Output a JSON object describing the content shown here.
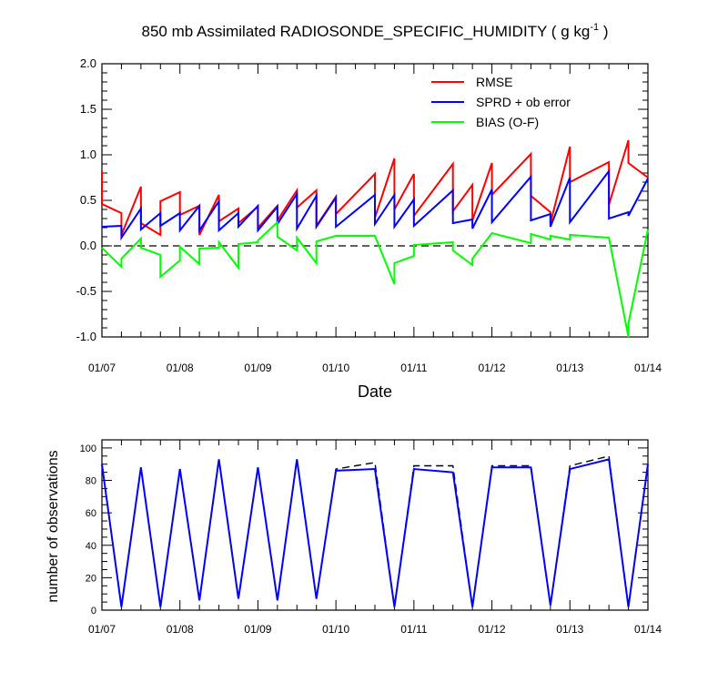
{
  "chart_data": [
    {
      "type": "line",
      "title_parts": [
        "850 mb Assimilated RADIOSONDE_SPECIFIC_HUMIDITY ( g kg",
        "-1",
        " )"
      ],
      "xlabel": "Date",
      "ylabel": "",
      "xlim": [
        0,
        7
      ],
      "ylim": [
        -1.0,
        2.0
      ],
      "yticks": [
        "2.0",
        "1.5",
        "1.0",
        "0.5",
        "0.0",
        "-0.5",
        "-1.0"
      ],
      "ytick_values": [
        2.0,
        1.5,
        1.0,
        0.5,
        0.0,
        -0.5,
        -1.0
      ],
      "xticks": [
        "01/07",
        "01/08",
        "01/09",
        "01/10",
        "01/11",
        "01/12",
        "01/13",
        "01/14"
      ],
      "x_unit": "days since 01/07",
      "zero_line": "dashed",
      "legend_position": "top-right",
      "series": [
        {
          "name": "RMSE",
          "color": "#ff0000",
          "points": [
            [
              0,
              0.82
            ],
            [
              0,
              0.46
            ],
            [
              0.25,
              0.36
            ],
            [
              0.25,
              0.12
            ],
            [
              0.5,
              0.65
            ],
            [
              0.5,
              0.25
            ],
            [
              0.75,
              0.12
            ],
            [
              0.75,
              0.49
            ],
            [
              1.0,
              0.59
            ],
            [
              1.0,
              0.34
            ],
            [
              1.25,
              0.44
            ],
            [
              1.25,
              0.12
            ],
            [
              1.5,
              0.56
            ],
            [
              1.5,
              0.27
            ],
            [
              1.75,
              0.41
            ],
            [
              1.75,
              0.25
            ],
            [
              2.0,
              0.43
            ],
            [
              2.0,
              0.2
            ],
            [
              2.25,
              0.44
            ],
            [
              2.25,
              0.28
            ],
            [
              2.5,
              0.61
            ],
            [
              2.5,
              0.42
            ],
            [
              2.75,
              0.61
            ],
            [
              2.75,
              0.22
            ],
            [
              3.0,
              0.54
            ],
            [
              3.0,
              0.35
            ],
            [
              3.5,
              0.79
            ],
            [
              3.5,
              0.31
            ],
            [
              3.75,
              0.96
            ],
            [
              3.75,
              0.4
            ],
            [
              4.0,
              0.79
            ],
            [
              4.0,
              0.33
            ],
            [
              4.5,
              0.9
            ],
            [
              4.5,
              0.38
            ],
            [
              4.75,
              0.67
            ],
            [
              4.75,
              0.28
            ],
            [
              5.0,
              0.91
            ],
            [
              5.0,
              0.56
            ],
            [
              5.5,
              1.01
            ],
            [
              5.5,
              0.55
            ],
            [
              5.75,
              0.37
            ],
            [
              5.75,
              0.25
            ],
            [
              6.0,
              1.09
            ],
            [
              6.0,
              0.7
            ],
            [
              6.5,
              0.92
            ],
            [
              6.5,
              0.45
            ],
            [
              6.75,
              1.16
            ],
            [
              6.75,
              0.91
            ],
            [
              7.0,
              0.75
            ]
          ]
        },
        {
          "name": "SPRD + ob error",
          "color": "#0000ff",
          "points": [
            [
              0,
              0.21
            ],
            [
              0.25,
              0.22
            ],
            [
              0.25,
              0.09
            ],
            [
              0.5,
              0.41
            ],
            [
              0.5,
              0.18
            ],
            [
              0.75,
              0.36
            ],
            [
              0.75,
              0.22
            ],
            [
              1.0,
              0.36
            ],
            [
              1.0,
              0.17
            ],
            [
              1.25,
              0.44
            ],
            [
              1.25,
              0.17
            ],
            [
              1.5,
              0.49
            ],
            [
              1.5,
              0.17
            ],
            [
              1.75,
              0.36
            ],
            [
              1.75,
              0.21
            ],
            [
              2.0,
              0.44
            ],
            [
              2.0,
              0.17
            ],
            [
              2.25,
              0.43
            ],
            [
              2.25,
              0.24
            ],
            [
              2.5,
              0.57
            ],
            [
              2.5,
              0.19
            ],
            [
              2.75,
              0.55
            ],
            [
              2.75,
              0.21
            ],
            [
              3.0,
              0.53
            ],
            [
              3.0,
              0.21
            ],
            [
              3.5,
              0.56
            ],
            [
              3.5,
              0.24
            ],
            [
              3.75,
              0.56
            ],
            [
              3.75,
              0.21
            ],
            [
              4.0,
              0.51
            ],
            [
              4.0,
              0.22
            ],
            [
              4.5,
              0.61
            ],
            [
              4.5,
              0.25
            ],
            [
              4.75,
              0.29
            ],
            [
              4.75,
              0.19
            ],
            [
              5.0,
              0.62
            ],
            [
              5.0,
              0.26
            ],
            [
              5.5,
              0.76
            ],
            [
              5.5,
              0.28
            ],
            [
              5.75,
              0.35
            ],
            [
              5.75,
              0.21
            ],
            [
              6.0,
              0.75
            ],
            [
              6.0,
              0.26
            ],
            [
              6.5,
              0.82
            ],
            [
              6.5,
              0.3
            ],
            [
              6.75,
              0.37
            ],
            [
              6.75,
              0.33
            ],
            [
              7.0,
              0.74
            ]
          ]
        },
        {
          "name": "BIAS (O-F)",
          "color": "#00ff00",
          "points": [
            [
              0,
              -0.02
            ],
            [
              0.25,
              -0.23
            ],
            [
              0.25,
              -0.14
            ],
            [
              0.5,
              0.08
            ],
            [
              0.5,
              -0.02
            ],
            [
              0.75,
              -0.1
            ],
            [
              0.75,
              -0.34
            ],
            [
              1.0,
              -0.16
            ],
            [
              1.0,
              -0.01
            ],
            [
              1.25,
              -0.2
            ],
            [
              1.25,
              -0.03
            ],
            [
              1.5,
              -0.02
            ],
            [
              1.5,
              0.04
            ],
            [
              1.75,
              -0.24
            ],
            [
              1.75,
              0.02
            ],
            [
              2.0,
              0.04
            ],
            [
              2.0,
              0.06
            ],
            [
              2.25,
              0.26
            ],
            [
              2.25,
              0.1
            ],
            [
              2.5,
              -0.05
            ],
            [
              2.5,
              0.09
            ],
            [
              2.75,
              -0.19
            ],
            [
              2.75,
              0.05
            ],
            [
              3.0,
              0.11
            ],
            [
              3.0,
              0.11
            ],
            [
              3.5,
              0.11
            ],
            [
              3.5,
              0.11
            ],
            [
              3.75,
              -0.42
            ],
            [
              3.75,
              -0.19
            ],
            [
              4.0,
              -0.11
            ],
            [
              4.0,
              0.01
            ],
            [
              4.5,
              0.04
            ],
            [
              4.5,
              -0.05
            ],
            [
              4.75,
              -0.21
            ],
            [
              4.75,
              -0.14
            ],
            [
              5.0,
              0.14
            ],
            [
              5.5,
              0.03
            ],
            [
              5.5,
              0.13
            ],
            [
              5.75,
              0.07
            ],
            [
              5.75,
              0.11
            ],
            [
              6.0,
              0.07
            ],
            [
              6.0,
              0.12
            ],
            [
              6.5,
              0.09
            ],
            [
              6.75,
              -1.0
            ],
            [
              6.75,
              -0.85
            ],
            [
              7.0,
              0.18
            ]
          ]
        }
      ]
    },
    {
      "type": "line",
      "title": "",
      "xlabel": "",
      "ylabel": "number of observations",
      "xlim": [
        0,
        7
      ],
      "ylim": [
        0,
        105
      ],
      "yticks": [
        "0",
        "20",
        "40",
        "60",
        "80",
        "100"
      ],
      "ytick_values": [
        0,
        20,
        40,
        60,
        80,
        100
      ],
      "xticks": [
        "01/07",
        "01/08",
        "01/09",
        "01/10",
        "01/11",
        "01/12",
        "01/13",
        "01/14"
      ],
      "x_unit": "days since 01/07",
      "series": [
        {
          "style": "dashed",
          "color": "#000000",
          "points": [
            [
              0,
              90
            ],
            [
              0.25,
              2
            ],
            [
              0.5,
              88
            ],
            [
              0.75,
              2
            ],
            [
              1.0,
              87
            ],
            [
              1.25,
              6
            ],
            [
              1.5,
              93
            ],
            [
              1.75,
              7
            ],
            [
              2.0,
              88
            ],
            [
              2.25,
              6
            ],
            [
              2.5,
              93
            ],
            [
              2.75,
              7
            ],
            [
              3.0,
              87
            ],
            [
              3.5,
              91
            ],
            [
              3.75,
              2
            ],
            [
              4.0,
              89
            ],
            [
              4.5,
              89
            ],
            [
              4.75,
              2
            ],
            [
              5.0,
              89
            ],
            [
              5.5,
              89
            ],
            [
              5.75,
              3
            ],
            [
              6.0,
              89
            ],
            [
              6.5,
              95
            ],
            [
              6.75,
              2
            ],
            [
              7.0,
              90
            ]
          ]
        },
        {
          "color": "#0000ff",
          "points": [
            [
              0,
              90
            ],
            [
              0.25,
              2
            ],
            [
              0.5,
              88
            ],
            [
              0.75,
              2
            ],
            [
              1.0,
              87
            ],
            [
              1.25,
              6
            ],
            [
              1.5,
              93
            ],
            [
              1.75,
              7
            ],
            [
              2.0,
              88
            ],
            [
              2.25,
              6
            ],
            [
              2.5,
              93
            ],
            [
              2.75,
              7
            ],
            [
              3.0,
              86
            ],
            [
              3.5,
              87
            ],
            [
              3.75,
              2
            ],
            [
              4.0,
              87
            ],
            [
              4.5,
              85
            ],
            [
              4.75,
              2
            ],
            [
              5.0,
              88
            ],
            [
              5.5,
              88
            ],
            [
              5.75,
              3
            ],
            [
              6.0,
              87
            ],
            [
              6.5,
              93
            ],
            [
              6.75,
              2
            ],
            [
              7.0,
              90
            ]
          ]
        }
      ]
    }
  ]
}
